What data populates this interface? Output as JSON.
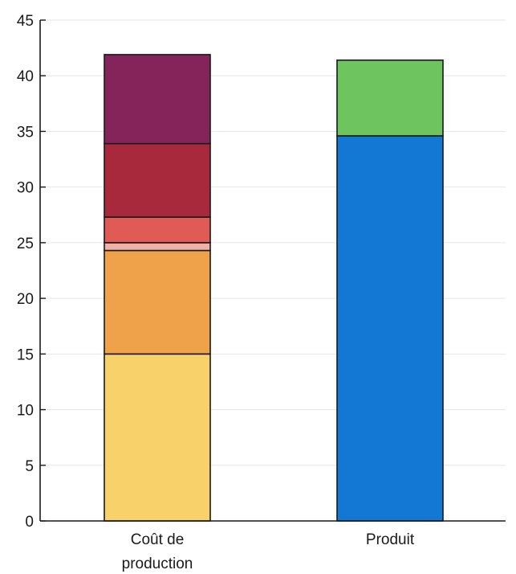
{
  "chart_data": {
    "type": "bar",
    "stacked": true,
    "categories": [
      "Coût de production",
      "Produit"
    ],
    "category_label_lines": [
      [
        "Coût de",
        "production"
      ],
      [
        "Produit"
      ]
    ],
    "ylim": [
      0,
      45
    ],
    "yticks": [
      0,
      5,
      10,
      15,
      20,
      25,
      30,
      35,
      40,
      45
    ],
    "grid": true,
    "legend": "none",
    "stacks": [
      {
        "category": "Coût de production",
        "segments": [
          {
            "value": 15.0,
            "color": "#F8D16A"
          },
          {
            "value": 9.3,
            "color": "#EFA24A"
          },
          {
            "value": 0.7,
            "color": "#F2B1A6"
          },
          {
            "value": 2.3,
            "color": "#E05A56"
          },
          {
            "value": 6.6,
            "color": "#A9293C"
          },
          {
            "value": 8.0,
            "color": "#84245A"
          }
        ]
      },
      {
        "category": "Produit",
        "segments": [
          {
            "value": 34.6,
            "color": "#1377D4"
          },
          {
            "value": 6.8,
            "color": "#6EC45F"
          }
        ]
      }
    ]
  }
}
